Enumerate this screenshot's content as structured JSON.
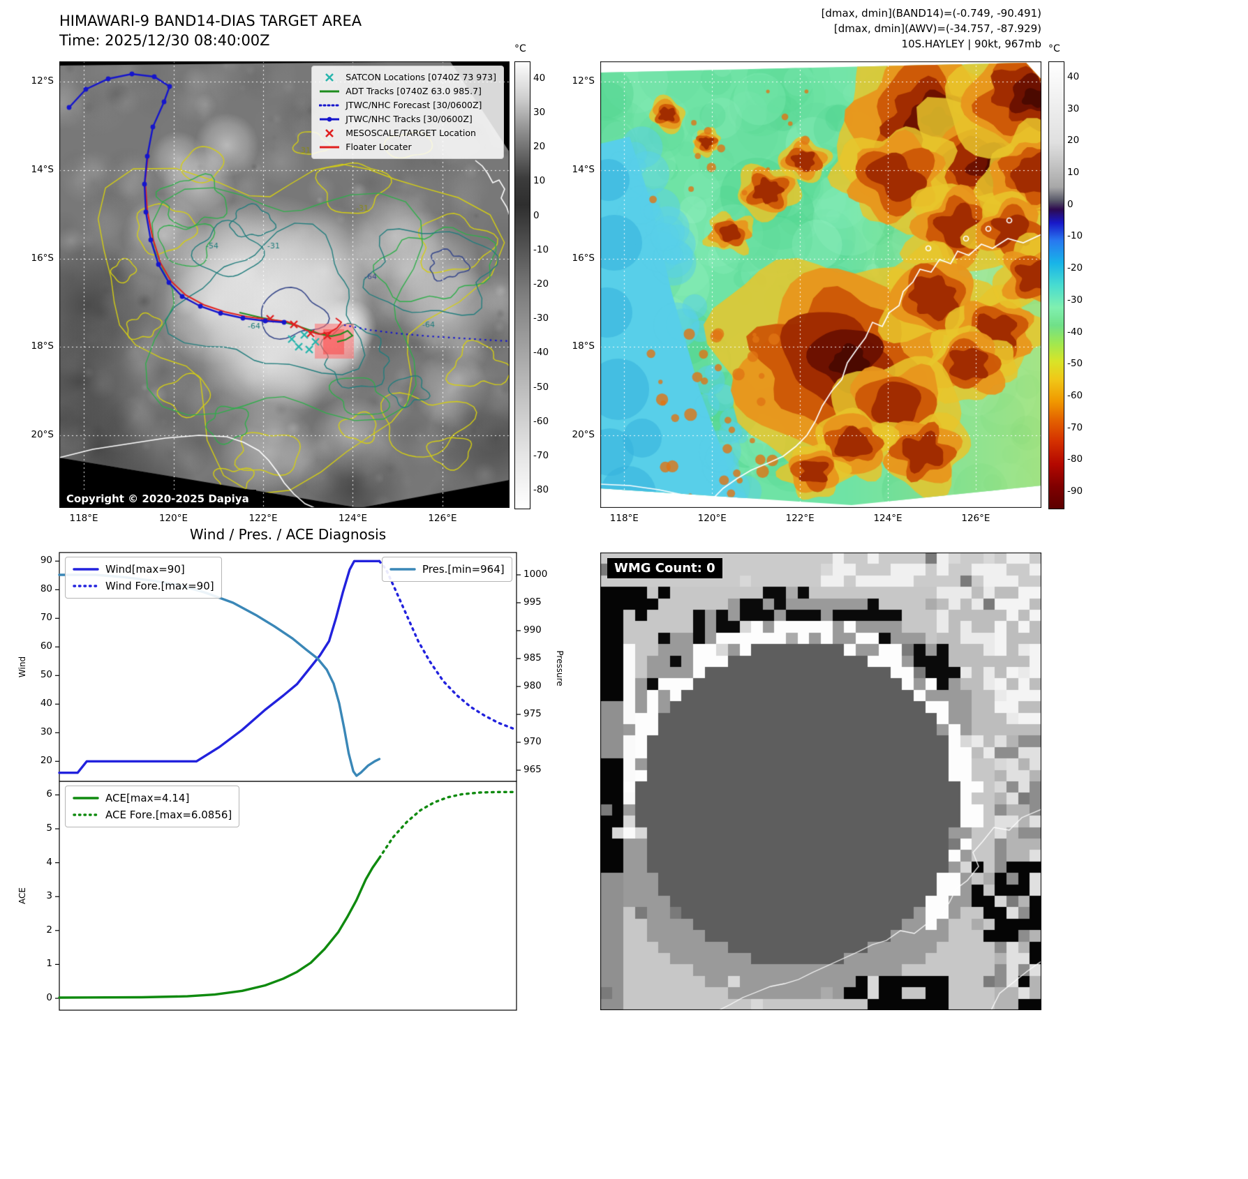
{
  "panel_band14": {
    "title": "HIMAWARI-9 BAND14-DIAS TARGET AREA",
    "subtitle": "Time: 2025/12/30 08:40:00Z",
    "copyright": "Copyright © 2020-2025 Dapiya",
    "colorbar": {
      "label": "°C",
      "ticks": [
        40,
        30,
        20,
        10,
        0,
        -10,
        -20,
        -30,
        -40,
        -50,
        -60,
        -70,
        -80
      ],
      "range": [
        45,
        -85
      ]
    },
    "x_ticks": [
      "118°E",
      "120°E",
      "122°E",
      "124°E",
      "126°E"
    ],
    "y_ticks": [
      "12°S",
      "14°S",
      "16°S",
      "18°S",
      "20°S"
    ],
    "legend": [
      {
        "label": "SATCON Locations [0740Z 73 973]",
        "color": "#28b5ad",
        "style": "x"
      },
      {
        "label": "ADT Tracks [0740Z 63.0 985.7]",
        "color": "#1e8c1e",
        "style": "line"
      },
      {
        "label": "JTWC/NHC Forecast [30/0600Z]",
        "color": "#1515cc",
        "style": "dotted"
      },
      {
        "label": "JTWC/NHC Tracks [30/0600Z]",
        "color": "#1515cc",
        "style": "line-marker"
      },
      {
        "label": "MESOSCALE/TARGET Location",
        "color": "#e02020",
        "style": "x"
      },
      {
        "label": "Floater Locater",
        "color": "#e02020",
        "style": "line"
      }
    ],
    "contour_labels": [
      "-31",
      "-54",
      "-31",
      "-64",
      "-64",
      "-64",
      "-31"
    ]
  },
  "panel_awv": {
    "header_lines": [
      "[dmax, dmin](BAND14)=(-0.749, -90.491)",
      "[dmax, dmin](AWV)=(-34.757, -87.929)",
      "10S.HAYLEY | 90kt, 967mb"
    ],
    "colorbar": {
      "label": "°C",
      "ticks": [
        40,
        30,
        20,
        10,
        0,
        -10,
        -20,
        -30,
        -40,
        -50,
        -60,
        -70,
        -80,
        -90
      ],
      "range": [
        45,
        -95
      ]
    },
    "x_ticks": [
      "118°E",
      "120°E",
      "122°E",
      "124°E",
      "126°E"
    ],
    "y_ticks": [
      "12°S",
      "14°S",
      "16°S",
      "18°S",
      "20°S"
    ]
  },
  "chart_data": [
    {
      "type": "line",
      "name": "wind_pressure",
      "title": "Wind / Pres. / ACE Diagnosis",
      "ylabel_left": "Wind",
      "ylabel_right": "Pressure",
      "xlim": [
        0,
        100
      ],
      "ylim_left": [
        13,
        93
      ],
      "ylim_right": [
        963,
        1004
      ],
      "y_ticks_left": [
        20,
        30,
        40,
        50,
        60,
        70,
        80,
        90
      ],
      "y_ticks_right": [
        965,
        970,
        975,
        980,
        985,
        990,
        995,
        1000
      ],
      "legend_left": [
        "Wind[max=90]",
        "Wind Fore.[max=90]"
      ],
      "legend_right": [
        "Pres.[min=964]"
      ],
      "series": [
        {
          "name": "Wind[max=90]",
          "axis": "left",
          "style": "solid",
          "color": "#2222dd",
          "points": [
            [
              0,
              16
            ],
            [
              4,
              16
            ],
            [
              6,
              20
            ],
            [
              30,
              20
            ],
            [
              35,
              25
            ],
            [
              40,
              31
            ],
            [
              45,
              38
            ],
            [
              49,
              43
            ],
            [
              52,
              47
            ],
            [
              55,
              53
            ],
            [
              57,
              57
            ],
            [
              59,
              62
            ],
            [
              60.5,
              70
            ],
            [
              62,
              79
            ],
            [
              63.5,
              87
            ],
            [
              64.5,
              90
            ],
            [
              70,
              90
            ]
          ]
        },
        {
          "name": "Wind Fore.[max=90]",
          "axis": "left",
          "style": "dotted",
          "color": "#2222dd",
          "points": [
            [
              70,
              90
            ],
            [
              71.5,
              87
            ],
            [
              73.5,
              80
            ],
            [
              76,
              71
            ],
            [
              78.5,
              62
            ],
            [
              81,
              55
            ],
            [
              84,
              48
            ],
            [
              87,
              43
            ],
            [
              90,
              39
            ],
            [
              93,
              36
            ],
            [
              96,
              33.5
            ],
            [
              100,
              31
            ]
          ]
        },
        {
          "name": "Pres.[min=964]",
          "axis": "right",
          "style": "solid",
          "color": "#3a87b7",
          "points": [
            [
              0,
              1000
            ],
            [
              8,
              1000
            ],
            [
              14,
              999.6
            ],
            [
              20,
              999
            ],
            [
              26,
              998.2
            ],
            [
              32,
              996.8
            ],
            [
              38,
              995
            ],
            [
              43,
              992.8
            ],
            [
              47,
              990.8
            ],
            [
              51,
              988.6
            ],
            [
              54,
              986.6
            ],
            [
              56.5,
              985
            ],
            [
              58.5,
              983
            ],
            [
              60,
              980.5
            ],
            [
              61.2,
              977
            ],
            [
              62.3,
              972.5
            ],
            [
              63.3,
              968
            ],
            [
              64.3,
              964.8
            ],
            [
              65,
              964
            ],
            [
              66,
              964.6
            ],
            [
              67.5,
              965.8
            ],
            [
              69,
              966.6
            ],
            [
              70,
              967
            ]
          ]
        }
      ]
    },
    {
      "type": "line",
      "name": "ace",
      "ylabel_left": "ACE",
      "xlim": [
        0,
        100
      ],
      "ylim_left": [
        -0.35,
        6.4
      ],
      "y_ticks_left": [
        0,
        1,
        2,
        3,
        4,
        5,
        6
      ],
      "legend_left": [
        "ACE[max=4.14]",
        "ACE Fore.[max=6.0856]"
      ],
      "series": [
        {
          "name": "ACE[max=4.14]",
          "axis": "left",
          "style": "solid",
          "color": "#0f8a0f",
          "points": [
            [
              0,
              0.02
            ],
            [
              18,
              0.03
            ],
            [
              28,
              0.06
            ],
            [
              34,
              0.11
            ],
            [
              40,
              0.22
            ],
            [
              45,
              0.38
            ],
            [
              49,
              0.58
            ],
            [
              52,
              0.78
            ],
            [
              55,
              1.05
            ],
            [
              58,
              1.45
            ],
            [
              61,
              1.95
            ],
            [
              63,
              2.4
            ],
            [
              65,
              2.9
            ],
            [
              67,
              3.5
            ],
            [
              68.5,
              3.85
            ],
            [
              70,
              4.14
            ]
          ]
        },
        {
          "name": "ACE Fore.[max=6.0856]",
          "axis": "left",
          "style": "dotted",
          "color": "#0f8a0f",
          "points": [
            [
              70,
              4.14
            ],
            [
              73,
              4.75
            ],
            [
              76,
              5.2
            ],
            [
              79,
              5.55
            ],
            [
              82,
              5.78
            ],
            [
              85,
              5.93
            ],
            [
              88,
              6.02
            ],
            [
              92,
              6.07
            ],
            [
              96,
              6.085
            ],
            [
              100,
              6.0856
            ]
          ]
        }
      ]
    }
  ],
  "wmg": {
    "label": "WMG Count: 0"
  }
}
